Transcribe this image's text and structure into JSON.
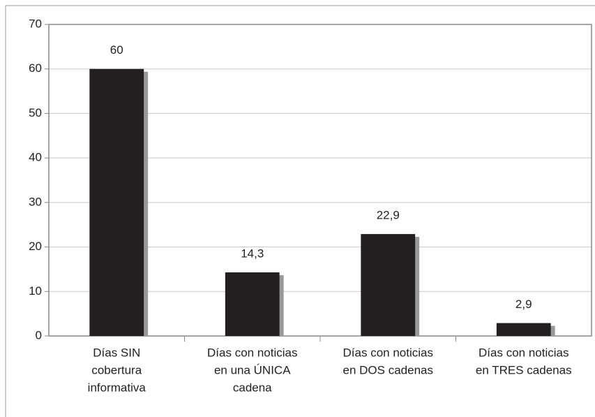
{
  "chart_data": {
    "type": "bar",
    "categories": [
      [
        "Días SIN",
        "cobertura",
        "informativa"
      ],
      [
        "Días con noticias",
        "en una ÚNICA",
        "cadena"
      ],
      [
        "Días con noticias",
        "en DOS cadenas"
      ],
      [
        "Días con noticias",
        "en TRES cadenas"
      ]
    ],
    "values": [
      60,
      14.3,
      22.9,
      2.9
    ],
    "value_labels": [
      "60",
      "14,3",
      "22,9",
      "2,9"
    ],
    "color": "#231f20",
    "ylim": [
      0,
      70
    ],
    "yticks": [
      0,
      10,
      20,
      30,
      40,
      50,
      60,
      70
    ],
    "grid": true
  }
}
